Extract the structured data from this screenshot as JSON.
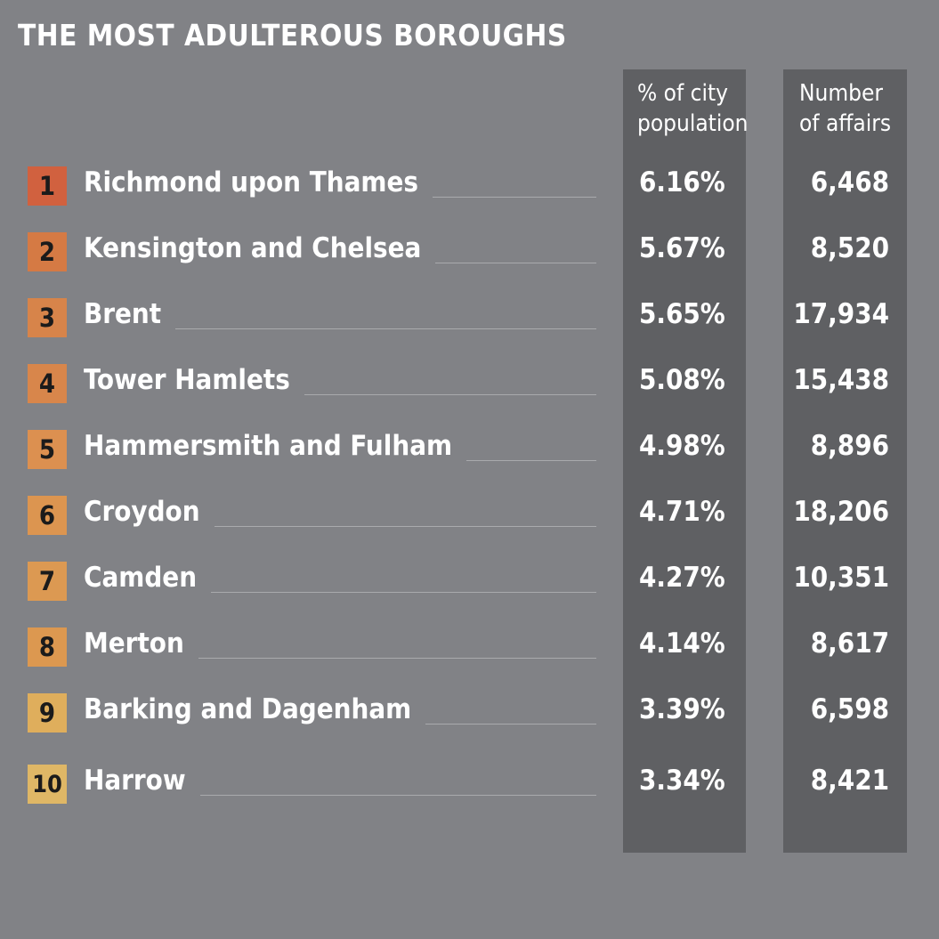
{
  "chart_data": {
    "type": "table",
    "title": "THE MOST ADULTEROUS BOROUGHS",
    "columns": [
      {
        "lines": [
          "% of city",
          "population"
        ]
      },
      {
        "lines": [
          "Number",
          "of affairs"
        ]
      }
    ],
    "rows": [
      {
        "rank": "1",
        "name": "Richmond upon Thames",
        "pct": "6.16%",
        "affairs": "6,468",
        "color": "#d1613f"
      },
      {
        "rank": "2",
        "name": "Kensington and Chelsea",
        "pct": "5.67%",
        "affairs": "8,520",
        "color": "#d57a44"
      },
      {
        "rank": "3",
        "name": "Brent",
        "pct": "5.65%",
        "affairs": "17,934",
        "color": "#d7844a"
      },
      {
        "rank": "4",
        "name": "Tower Hamlets",
        "pct": "5.08%",
        "affairs": "15,438",
        "color": "#d8864b"
      },
      {
        "rank": "5",
        "name": "Hammersmith and Fulham",
        "pct": "4.98%",
        "affairs": "8,896",
        "color": "#dc9050"
      },
      {
        "rank": "6",
        "name": "Croydon",
        "pct": "4.71%",
        "affairs": "18,206",
        "color": "#dc9550"
      },
      {
        "rank": "7",
        "name": "Camden",
        "pct": "4.27%",
        "affairs": "10,351",
        "color": "#dc9952"
      },
      {
        "rank": "8",
        "name": "Merton",
        "pct": "4.14%",
        "affairs": "8,617",
        "color": "#dc9850"
      },
      {
        "rank": "9",
        "name": "Barking and Dagenham",
        "pct": "3.39%",
        "affairs": "6,598",
        "color": "#dfae5c"
      },
      {
        "rank": "10",
        "name": "Harrow",
        "pct": "3.34%",
        "affairs": "8,421",
        "color": "#dfb766"
      }
    ]
  }
}
